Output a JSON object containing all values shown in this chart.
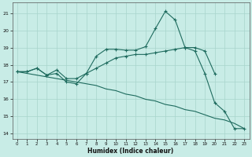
{
  "xlabel": "Humidex (Indice chaleur)",
  "ylabel": "",
  "bg_color": "#c8ece6",
  "grid_color_major": "#a8d4cc",
  "grid_color_minor": "#b8e0da",
  "line_color": "#1e6b5e",
  "xlim": [
    -0.5,
    23.5
  ],
  "ylim": [
    13.7,
    21.6
  ],
  "yticks": [
    14,
    15,
    16,
    17,
    18,
    19,
    20,
    21
  ],
  "xticks": [
    0,
    1,
    2,
    3,
    4,
    5,
    6,
    7,
    8,
    9,
    10,
    11,
    12,
    13,
    14,
    15,
    16,
    17,
    18,
    19,
    20,
    21,
    22,
    23
  ],
  "line1_x": [
    0,
    1,
    2,
    3,
    4,
    5,
    6,
    7,
    8,
    9,
    10,
    11,
    12,
    13,
    14,
    15,
    16,
    17,
    18,
    19,
    20,
    21,
    22,
    23
  ],
  "line1_y": [
    17.6,
    17.6,
    17.8,
    17.4,
    17.5,
    17.0,
    16.9,
    17.5,
    18.5,
    18.9,
    18.9,
    18.85,
    18.85,
    19.05,
    20.1,
    21.1,
    20.6,
    19.0,
    18.8,
    17.5,
    15.8,
    15.3,
    14.3,
    14.3
  ],
  "line2_x": [
    0,
    1,
    2,
    3,
    4,
    5,
    6,
    7,
    8,
    9,
    10,
    11,
    12,
    13,
    14,
    15,
    16,
    17,
    18,
    19,
    20
  ],
  "line2_y": [
    17.6,
    17.6,
    17.8,
    17.4,
    17.7,
    17.2,
    17.2,
    17.5,
    17.8,
    18.1,
    18.4,
    18.5,
    18.6,
    18.6,
    18.7,
    18.8,
    18.9,
    19.0,
    19.0,
    18.8,
    17.5
  ],
  "line3_x": [
    0,
    1,
    2,
    3,
    4,
    5,
    6,
    7,
    8,
    9,
    10,
    11,
    12,
    13,
    14,
    15,
    16,
    17,
    18,
    19,
    20,
    21,
    22,
    23
  ],
  "line3_y": [
    17.6,
    17.5,
    17.4,
    17.3,
    17.2,
    17.1,
    17.0,
    16.9,
    16.8,
    16.6,
    16.5,
    16.3,
    16.2,
    16.0,
    15.9,
    15.7,
    15.6,
    15.4,
    15.3,
    15.1,
    14.9,
    14.8,
    14.6,
    14.3
  ]
}
